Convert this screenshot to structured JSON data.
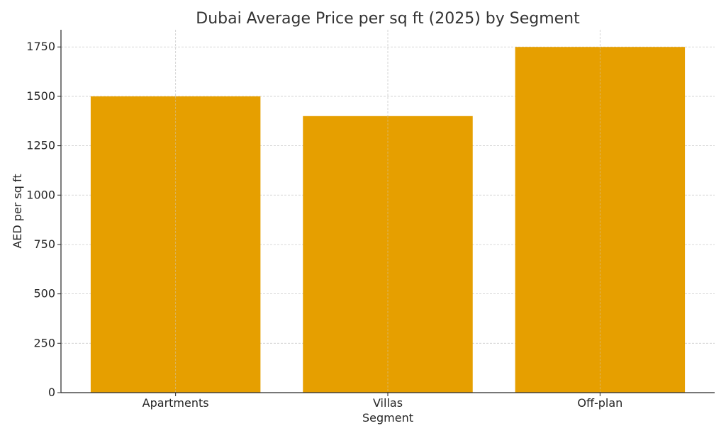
{
  "chart_data": {
    "type": "bar",
    "title": "Dubai Average Price per sq ft (2025) by Segment",
    "xlabel": "Segment",
    "ylabel": "AED per sq ft",
    "categories": [
      "Apartments",
      "Villas",
      "Off-plan"
    ],
    "values": [
      1500,
      1400,
      1750
    ],
    "ylim": [
      0,
      1837
    ],
    "yticks": [
      0,
      250,
      500,
      750,
      1000,
      1250,
      1500,
      1750
    ],
    "grid": true,
    "bar_color": "#E69F00"
  }
}
